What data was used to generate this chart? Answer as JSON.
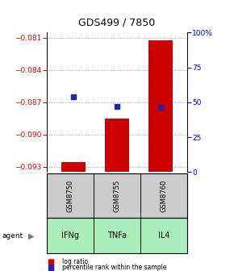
{
  "title": "GDS499 / 7850",
  "samples": [
    "GSM8750",
    "GSM8755",
    "GSM8760"
  ],
  "agents": [
    "IFNg",
    "TNFa",
    "IL4"
  ],
  "log_ratios": [
    -0.09255,
    -0.08855,
    -0.0812
  ],
  "percentile_ranks": [
    54.0,
    47.0,
    46.5
  ],
  "ylim_left": [
    -0.0935,
    -0.0805
  ],
  "yticks_left": [
    -0.093,
    -0.09,
    -0.087,
    -0.084,
    -0.081
  ],
  "ylim_right": [
    0,
    100
  ],
  "yticks_right": [
    0,
    25,
    50,
    75,
    100
  ],
  "bar_color": "#cc0000",
  "dot_color": "#2222aa",
  "sample_box_color": "#cccccc",
  "agent_box_color": "#aaeebb",
  "left_axis_color": "#cc0000",
  "right_axis_color": "#0000cc",
  "bar_width": 0.55,
  "legend_bar_label": "log ratio",
  "legend_dot_label": "percentile rank within the sample"
}
